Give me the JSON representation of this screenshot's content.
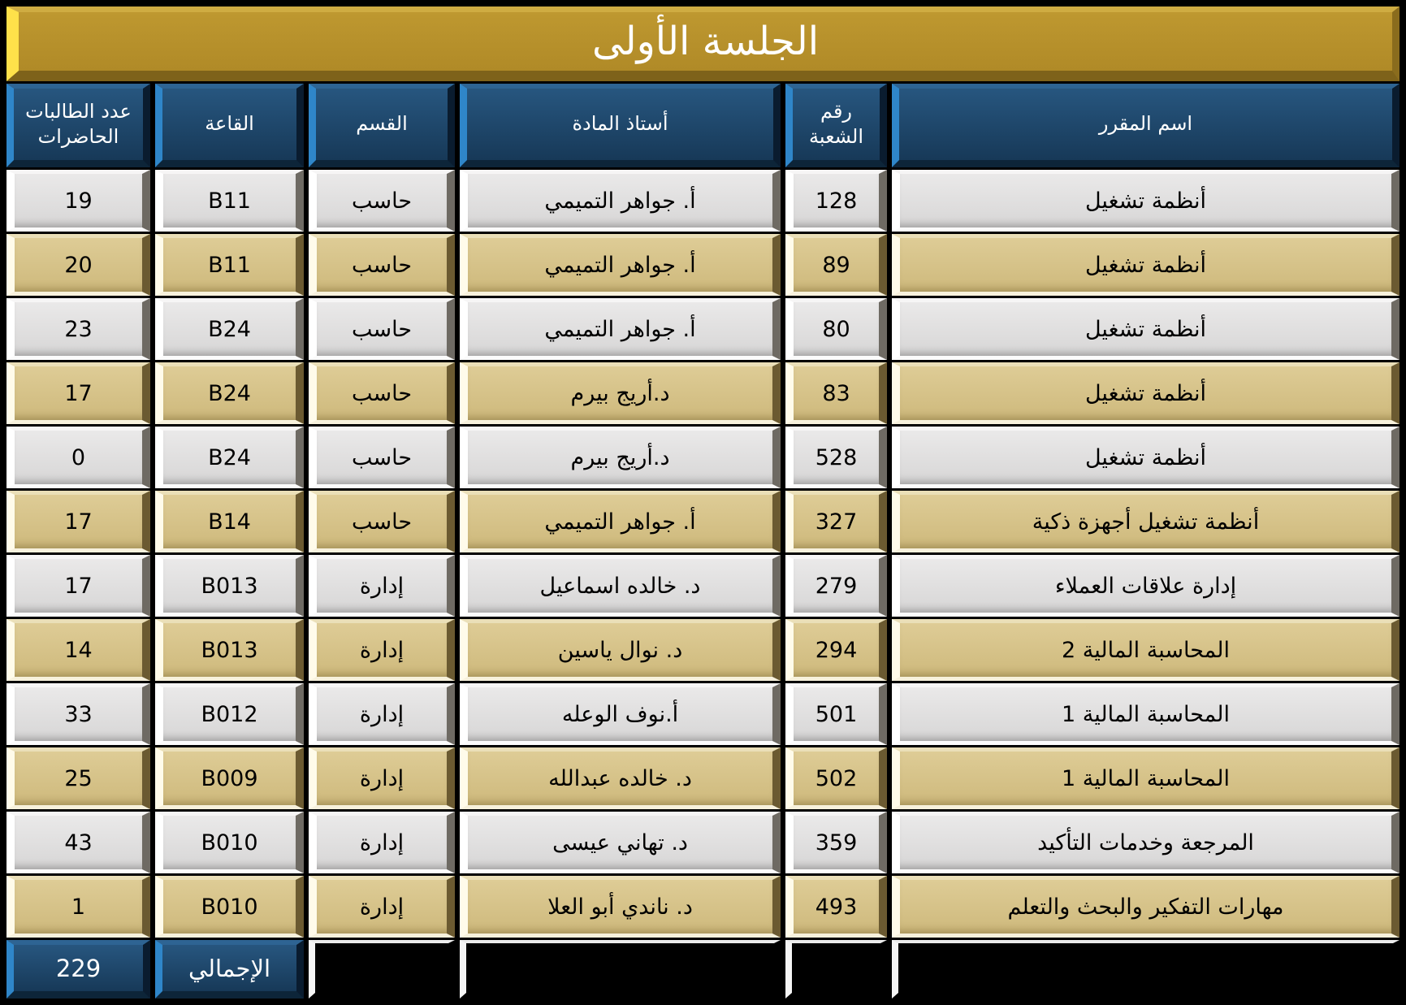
{
  "title": "الجلسة الأولى",
  "columns": {
    "course": "اسم المقرر",
    "section": "رقم الشعبة",
    "instructor": "أستاذ المادة",
    "dept": "القسم",
    "room": "القاعة",
    "count": "عدد الطالبات الحاضرات"
  },
  "rows": [
    {
      "course": "أنظمة تشغيل",
      "section": "128",
      "instructor": "أ. جواهر التميمي",
      "dept": "حاسب",
      "room": "B11",
      "count": "19"
    },
    {
      "course": "أنظمة تشغيل",
      "section": "89",
      "instructor": "أ. جواهر التميمي",
      "dept": "حاسب",
      "room": "B11",
      "count": "20"
    },
    {
      "course": "أنظمة تشغيل",
      "section": "80",
      "instructor": "أ. جواهر التميمي",
      "dept": "حاسب",
      "room": "B24",
      "count": "23"
    },
    {
      "course": "أنظمة تشغيل",
      "section": "83",
      "instructor": "د.أريج بيرم",
      "dept": "حاسب",
      "room": "B24",
      "count": "17"
    },
    {
      "course": "أنظمة تشغيل",
      "section": "528",
      "instructor": "د.أريج بيرم",
      "dept": "حاسب",
      "room": "B24",
      "count": "0"
    },
    {
      "course": "أنظمة تشغيل أجهزة ذكية",
      "section": "327",
      "instructor": "أ. جواهر التميمي",
      "dept": "حاسب",
      "room": "B14",
      "count": "17"
    },
    {
      "course": "إدارة علاقات العملاء",
      "section": "279",
      "instructor": "د. خالده اسماعيل",
      "dept": "إدارة",
      "room": "B013",
      "count": "17"
    },
    {
      "course": "المحاسبة المالية 2",
      "section": "294",
      "instructor": "د. نوال ياسين",
      "dept": "إدارة",
      "room": "B013",
      "count": "14"
    },
    {
      "course": "المحاسبة المالية 1",
      "section": "501",
      "instructor": "أ.نوف الوعله",
      "dept": "إدارة",
      "room": "B012",
      "count": "33"
    },
    {
      "course": "المحاسبة المالية 1",
      "section": "502",
      "instructor": "د. خالده عبدالله",
      "dept": "إدارة",
      "room": "B009",
      "count": "25"
    },
    {
      "course": "المرجعة وخدمات التأكيد",
      "section": "359",
      "instructor": "د. تهاني عيسى",
      "dept": "إدارة",
      "room": "B010",
      "count": "43"
    },
    {
      "course": "مهارات التفكير والبحث والتعلم",
      "section": "493",
      "instructor": "د. ناندي أبو العلا",
      "dept": "إدارة",
      "room": "B010",
      "count": "1"
    }
  ],
  "total": {
    "label": "الإجمالي",
    "value": "229"
  },
  "colors": {
    "banner_gold": "#B8922C",
    "banner_edge_yellow": "#FFE14A",
    "header_navy": "#1D4365",
    "header_edge_blue": "#2F86C9",
    "row_gray": "#DEDDDD",
    "row_tan": "#D6C287",
    "background": "#000000",
    "header_text": "#FFFFFF",
    "data_text": "#000000"
  }
}
